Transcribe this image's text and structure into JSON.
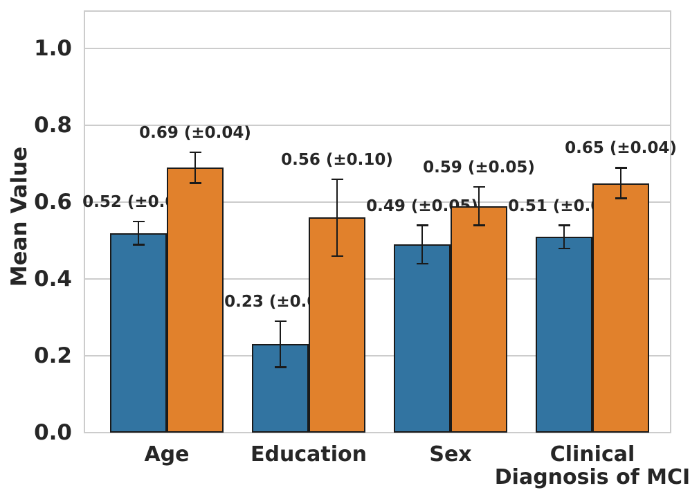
{
  "chart_data": {
    "type": "bar",
    "title": "",
    "xlabel": "",
    "ylabel": "Mean Value",
    "ylim": [
      0,
      1.1
    ],
    "grid": true,
    "legend": false,
    "yticks": [
      {
        "value": 0.0,
        "label": "0.0"
      },
      {
        "value": 0.2,
        "label": "0.2"
      },
      {
        "value": 0.4,
        "label": "0.4"
      },
      {
        "value": 0.6,
        "label": "0.6"
      },
      {
        "value": 0.8,
        "label": "0.8"
      },
      {
        "value": 1.0,
        "label": "1.0"
      }
    ],
    "categories": [
      "Age",
      "Education",
      "Sex",
      "Clinical\nDiagnosis of MCI"
    ],
    "series": [
      {
        "color": "#3274a1",
        "color_name": "blue",
        "values": [
          0.52,
          0.23,
          0.49,
          0.51
        ],
        "errors": [
          0.03,
          0.06,
          0.05,
          0.03
        ],
        "labels": [
          "0.52 (±0.03)",
          "0.23 (±0.06)",
          "0.49 (±0.05)",
          "0.51 (±0.03)"
        ]
      },
      {
        "color": "#e1812c",
        "color_name": "orange",
        "values": [
          0.69,
          0.56,
          0.59,
          0.65
        ],
        "errors": [
          0.04,
          0.1,
          0.05,
          0.04
        ],
        "labels": [
          "0.69 (±0.04)",
          "0.56 (±0.10)",
          "0.59 (±0.05)",
          "0.65 (±0.04)"
        ]
      }
    ],
    "colors": {
      "bar_edge": "#1a1a1a",
      "grid": "#cccccc",
      "text": "#262626",
      "background": "#ffffff"
    }
  }
}
